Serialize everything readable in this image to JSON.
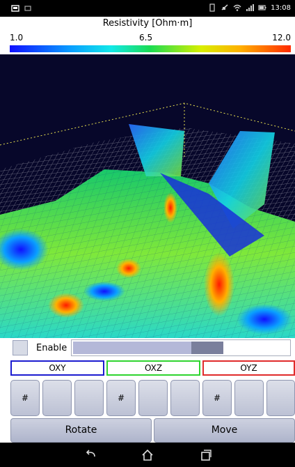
{
  "status_bar": {
    "time": "13:08",
    "left_icons": [
      "gallery-icon",
      "notification-icon"
    ],
    "right_icons": [
      "sim-icon",
      "mute-icon",
      "wifi-icon",
      "signal-icon",
      "battery-icon"
    ]
  },
  "legend": {
    "title": "Resistivity [Ohm·m]",
    "min_label": "1.0",
    "mid_label": "6.5",
    "max_label": "12.0",
    "colors": [
      "#1010ff",
      "#0aa0ff",
      "#12e8e8",
      "#1bdc52",
      "#d8ef00",
      "#ffb000",
      "#ff2a00"
    ]
  },
  "controls": {
    "enable_label": "Enable",
    "slider_value_fraction": 0.62,
    "planes": [
      {
        "label": "OXY",
        "color": "#1b1bd0"
      },
      {
        "label": "OXZ",
        "color": "#2fd42f"
      },
      {
        "label": "OYZ",
        "color": "#e02a2a"
      }
    ],
    "grid_buttons": [
      "#",
      "",
      "",
      "#",
      "",
      "",
      "#",
      "",
      ""
    ],
    "rotate_label": "Rotate",
    "move_label": "Move"
  },
  "nav_bar": [
    "back-icon",
    "home-icon",
    "recent-apps-icon"
  ]
}
